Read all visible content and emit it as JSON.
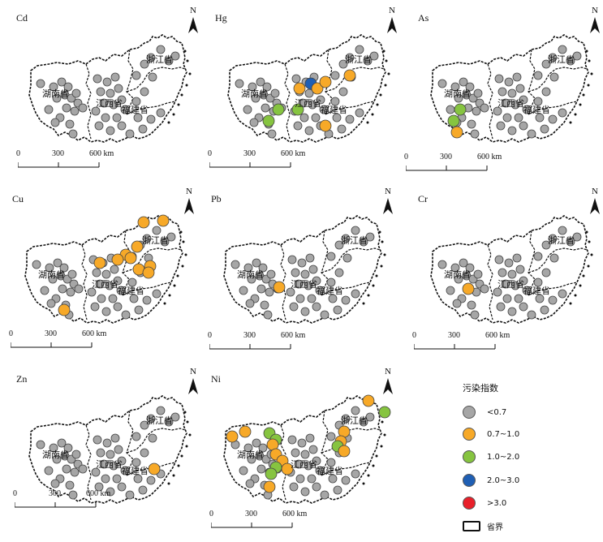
{
  "legend": {
    "title": "污染指数",
    "items": [
      {
        "label": "<0.7",
        "color": "#a6a6a6"
      },
      {
        "label": "0.7~1.0",
        "color": "#f7a928"
      },
      {
        "label": "1.0~2.0",
        "color": "#86c440"
      },
      {
        "label": "2.0~3.0",
        "color": "#1f5fb4"
      },
      {
        "label": ">3.0",
        "color": "#e8202a"
      }
    ],
    "boundary_label": "省界"
  },
  "provinces": {
    "hunan": "湖南省",
    "jiangxi": "江西省",
    "fujian": "福建省",
    "zhejiang": "浙江省"
  },
  "north_label": "N",
  "scale": {
    "ticks": [
      "0",
      "300",
      "600 km"
    ]
  },
  "panels": [
    {
      "element": "Cd"
    },
    {
      "element": "Hg"
    },
    {
      "element": "As"
    },
    {
      "element": "Cu"
    },
    {
      "element": "Pb"
    },
    {
      "element": "Cr"
    },
    {
      "element": "Zn"
    },
    {
      "element": "Ni"
    }
  ]
}
